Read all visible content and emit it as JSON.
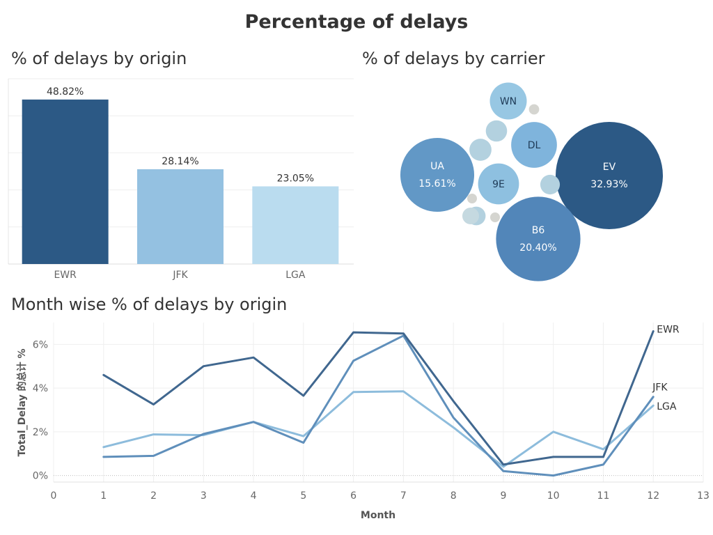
{
  "title": "Percentage of delays",
  "chart_data": [
    {
      "type": "bar",
      "title": "% of delays by origin",
      "categories": [
        "EWR",
        "JFK",
        "LGA"
      ],
      "values": [
        48.82,
        28.14,
        23.05
      ],
      "value_labels": [
        "48.82%",
        "28.14%",
        "23.05%"
      ],
      "colors": [
        "#2c5985",
        "#94c1e1",
        "#badcef"
      ],
      "ylim": [
        0,
        55
      ],
      "grid": true
    },
    {
      "type": "bubble",
      "title": "% of delays by carrier",
      "bubbles": [
        {
          "label": "EV",
          "value": 32.93,
          "value_label": "32.93%",
          "color": "#2c5985"
        },
        {
          "label": "B6",
          "value": 20.4,
          "value_label": "20.40%",
          "color": "#5286b9"
        },
        {
          "label": "UA",
          "value": 15.61,
          "value_label": "15.61%",
          "color": "#6298c6"
        },
        {
          "label": "DL",
          "value": 6.0,
          "value_label": "",
          "color": "#7fb4dc"
        },
        {
          "label": "9E",
          "value": 4.8,
          "value_label": "",
          "color": "#8ec0e0"
        },
        {
          "label": "WN",
          "value": 3.9,
          "value_label": "",
          "color": "#97c7e3"
        },
        {
          "label": "",
          "value": 1.4,
          "value_label": "",
          "color": "#b3d1df"
        },
        {
          "label": "",
          "value": 1.3,
          "value_label": "",
          "color": "#b3d1df"
        },
        {
          "label": "",
          "value": 1.1,
          "value_label": "",
          "color": "#b3d1df"
        },
        {
          "label": "",
          "value": 1.0,
          "value_label": "",
          "color": "#b3d1df"
        },
        {
          "label": "",
          "value": 0.8,
          "value_label": "",
          "color": "#c5d9e0"
        },
        {
          "label": "",
          "value": 0.3,
          "value_label": "",
          "color": "#d5d5d0"
        },
        {
          "label": "",
          "value": 0.2,
          "value_label": "",
          "color": "#d5d5d0"
        },
        {
          "label": "",
          "value": 0.15,
          "value_label": "",
          "color": "#d5d5d0"
        }
      ]
    },
    {
      "type": "line",
      "title": "Month wise % of delays by origin",
      "xlabel": "Month",
      "ylabel": "Total_Delay 的总计 %",
      "xlim": [
        0,
        13
      ],
      "ylim": [
        -0.3,
        7.0
      ],
      "xticks": [
        0,
        1,
        2,
        3,
        4,
        5,
        6,
        7,
        8,
        9,
        10,
        11,
        12,
        13
      ],
      "yticks": [
        0,
        2,
        4,
        6
      ],
      "ytick_labels": [
        "0%",
        "2%",
        "4%",
        "6%"
      ],
      "x": [
        1,
        2,
        3,
        4,
        5,
        6,
        7,
        8,
        9,
        10,
        11,
        12
      ],
      "series": [
        {
          "name": "EWR",
          "color": "#40678f",
          "values": [
            4.6,
            3.25,
            5.0,
            5.4,
            3.65,
            6.55,
            6.5,
            3.4,
            0.5,
            0.85,
            0.85,
            6.6
          ]
        },
        {
          "name": "JFK",
          "color": "#5f8fbb",
          "values": [
            0.85,
            0.9,
            1.9,
            2.45,
            1.5,
            5.25,
            6.4,
            2.65,
            0.2,
            0.0,
            0.5,
            3.6
          ]
        },
        {
          "name": "LGA",
          "color": "#8dbcdc",
          "values": [
            1.3,
            1.88,
            1.85,
            2.45,
            1.8,
            3.82,
            3.85,
            2.2,
            0.4,
            2.0,
            1.2,
            3.2
          ]
        }
      ]
    }
  ]
}
